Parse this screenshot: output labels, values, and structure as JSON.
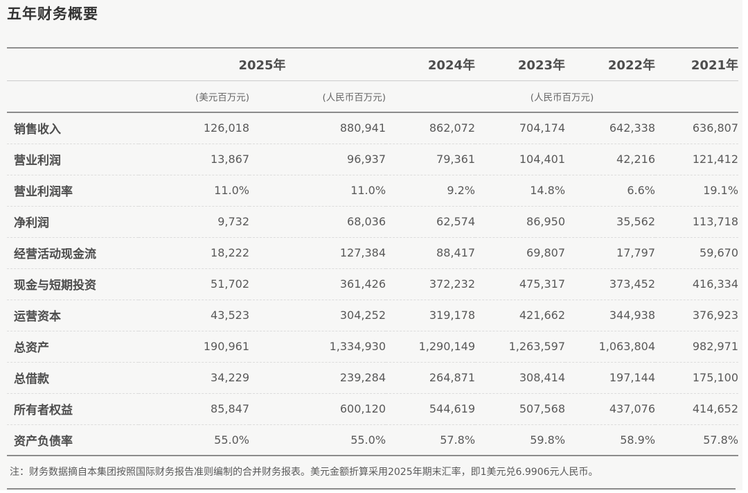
{
  "title": "五年财务概要",
  "table": {
    "header": {
      "year_2025": "2025年",
      "year_2024": "2024年",
      "year_2023": "2023年",
      "year_2022": "2022年",
      "year_2021": "2021年",
      "unit_usd": "(美元百万元)",
      "unit_rmb_2025": "(人民币百万元)",
      "unit_rmb_prior": "(人民币百万元)"
    },
    "rows": [
      {
        "label": "销售收入",
        "values": [
          "126,018",
          "880,941",
          "862,072",
          "704,174",
          "642,338",
          "636,807"
        ]
      },
      {
        "label": "营业利润",
        "values": [
          "13,867",
          "96,937",
          "79,361",
          "104,401",
          "42,216",
          "121,412"
        ]
      },
      {
        "label": "营业利润率",
        "values": [
          "11.0%",
          "11.0%",
          "9.2%",
          "14.8%",
          "6.6%",
          "19.1%"
        ]
      },
      {
        "label": "净利润",
        "values": [
          "9,732",
          "68,036",
          "62,574",
          "86,950",
          "35,562",
          "113,718"
        ]
      },
      {
        "label": "经营活动现金流",
        "values": [
          "18,222",
          "127,384",
          "88,417",
          "69,807",
          "17,797",
          "59,670"
        ]
      },
      {
        "label": "现金与短期投资",
        "values": [
          "51,702",
          "361,426",
          "372,232",
          "475,317",
          "373,452",
          "416,334"
        ]
      },
      {
        "label": "运营资本",
        "values": [
          "43,523",
          "304,252",
          "319,178",
          "421,662",
          "344,938",
          "376,923"
        ]
      },
      {
        "label": "总资产",
        "values": [
          "190,961",
          "1,334,930",
          "1,290,149",
          "1,263,597",
          "1,063,804",
          "982,971"
        ]
      },
      {
        "label": "总借款",
        "values": [
          "34,229",
          "239,284",
          "264,871",
          "308,414",
          "197,144",
          "175,100"
        ]
      },
      {
        "label": "所有者权益",
        "values": [
          "85,847",
          "600,120",
          "544,619",
          "507,568",
          "437,076",
          "414,652"
        ]
      },
      {
        "label": "资产负债率",
        "values": [
          "55.0%",
          "55.0%",
          "57.8%",
          "59.8%",
          "58.9%",
          "57.8%"
        ]
      }
    ]
  },
  "note": "注：财务数据摘自本集团按照国际财务报告准则编制的合并财务报表。美元金额折算采用2025年期末汇率，即1美元兑6.9906元人民币。",
  "colors": {
    "page_background": "#f7f7f6",
    "heading_text": "#333333",
    "label_text": "#4d4d4d",
    "number_text": "#595959",
    "strong_line": "#8c8c8c",
    "light_line": "#cccccc",
    "dashed_line": "#dcdcdc"
  }
}
